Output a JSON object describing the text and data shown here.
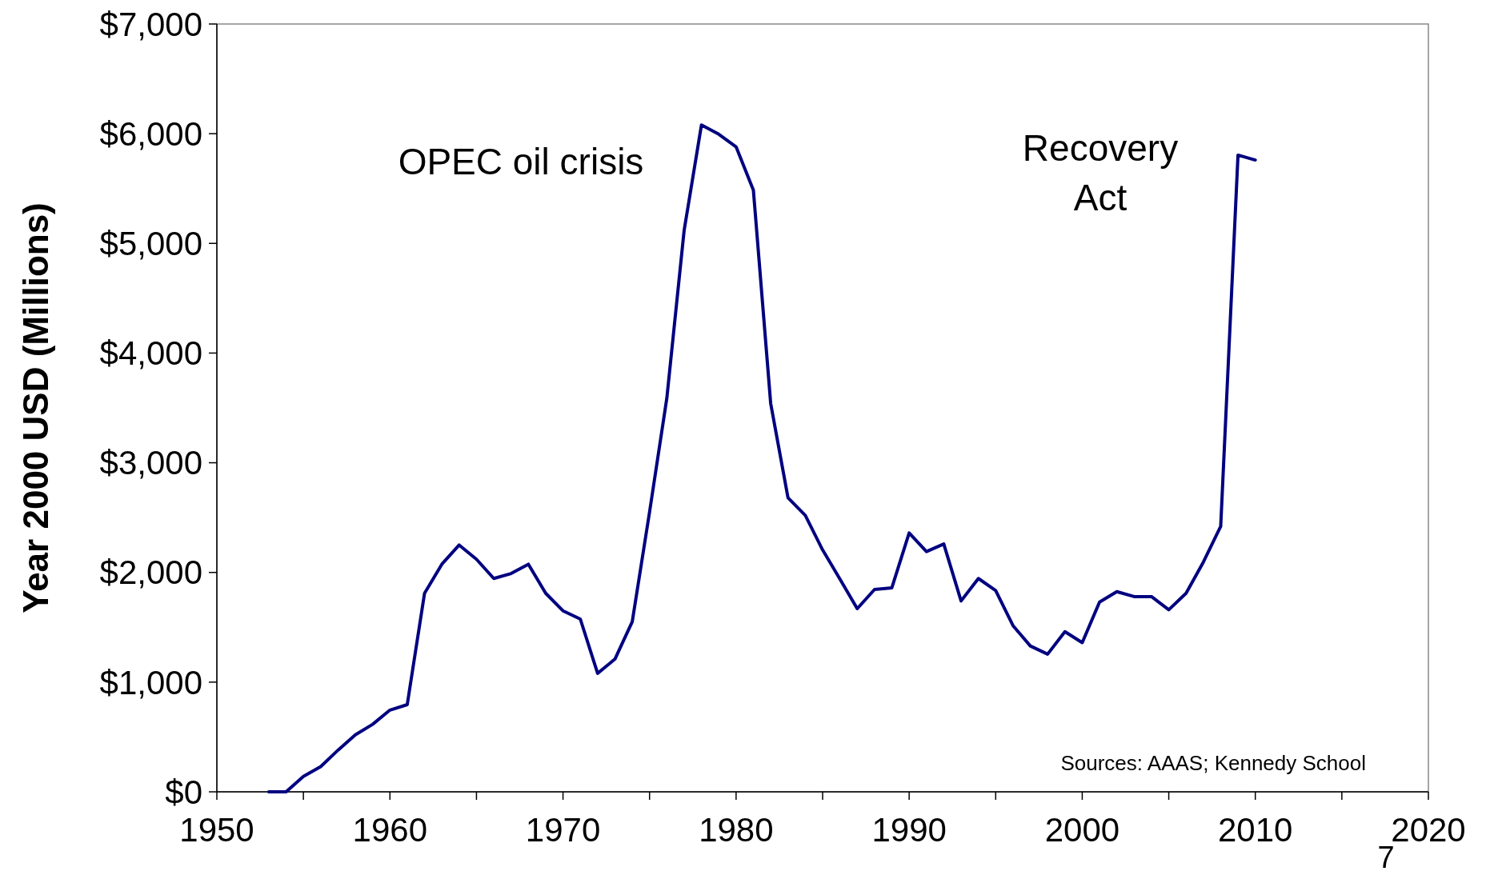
{
  "chart_data": {
    "type": "line",
    "ylabel": "Year 2000 USD (Millions)",
    "x": [
      1953,
      1954,
      1955,
      1956,
      1957,
      1958,
      1959,
      1960,
      1961,
      1962,
      1963,
      1964,
      1965,
      1966,
      1967,
      1968,
      1969,
      1970,
      1971,
      1972,
      1973,
      1974,
      1975,
      1976,
      1977,
      1978,
      1979,
      1980,
      1981,
      1982,
      1983,
      1984,
      1985,
      1986,
      1987,
      1988,
      1989,
      1990,
      1991,
      1992,
      1993,
      1994,
      1995,
      1996,
      1997,
      1998,
      1999,
      2000,
      2001,
      2002,
      2003,
      2004,
      2005,
      2006,
      2007,
      2008,
      2009,
      2010
    ],
    "series": [
      {
        "color": "#000080",
        "values": [
          0,
          0,
          140,
          230,
          380,
          520,
          615,
          745,
          795,
          1810,
          2075,
          2250,
          2120,
          1945,
          1990,
          2075,
          1810,
          1650,
          1575,
          1080,
          1210,
          1550,
          2550,
          3590,
          5120,
          6080,
          5995,
          5880,
          5485,
          3540,
          2680,
          2520,
          2205,
          1940,
          1670,
          1845,
          1860,
          2360,
          2190,
          2260,
          1740,
          1945,
          1835,
          1515,
          1330,
          1255,
          1460,
          1360,
          1730,
          1825,
          1780,
          1780,
          1660,
          1810,
          2095,
          2420,
          5805,
          5760
        ]
      }
    ],
    "xlim": [
      1950,
      2020
    ],
    "ylim": [
      0,
      7000
    ],
    "xticks": [
      1950,
      {
        "value": 1955,
        "label": null
      },
      1960,
      {
        "value": 1965,
        "label": null
      },
      1970,
      {
        "value": 1975,
        "label": null
      },
      1980,
      {
        "value": 1985,
        "label": null
      },
      1990,
      {
        "value": 1995,
        "label": null
      },
      2000,
      {
        "value": 2005,
        "label": null
      },
      2010,
      {
        "value": 2015,
        "label": null
      },
      2020
    ],
    "yticks": [
      {
        "value": 0,
        "label": "$0"
      },
      {
        "value": 1000,
        "label": "$1,000"
      },
      {
        "value": 2000,
        "label": "$2,000"
      },
      {
        "value": 3000,
        "label": "$3,000"
      },
      {
        "value": 4000,
        "label": "$4,000"
      },
      {
        "value": 5000,
        "label": "$5,000"
      },
      {
        "value": 6000,
        "label": "$6,000"
      },
      {
        "value": 7000,
        "label": "$7,000"
      }
    ],
    "grid": false,
    "marker": "none",
    "line_style": "solid",
    "annotations": [
      "OPEC oil crisis",
      "Recovery\nAct",
      "Sources: AAAS; Kennedy School",
      "7"
    ]
  }
}
